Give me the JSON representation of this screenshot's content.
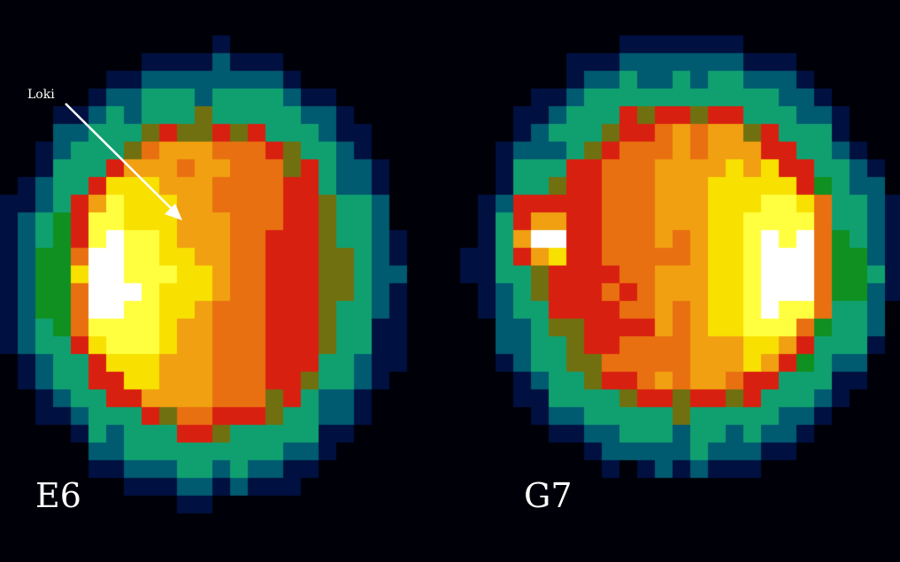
{
  "panels": [
    {
      "label": "E6"
    },
    {
      "label": "G7"
    }
  ],
  "annotation": {
    "label": "Loki",
    "color": "#ffffff"
  },
  "colormap": [
    "#000008",
    "#001040",
    "#005a70",
    "#10a070",
    "#109020",
    "#707010",
    "#d82010",
    "#e87010",
    "#f0a010",
    "#f8e000",
    "#ffff40",
    "#ffffff"
  ]
}
